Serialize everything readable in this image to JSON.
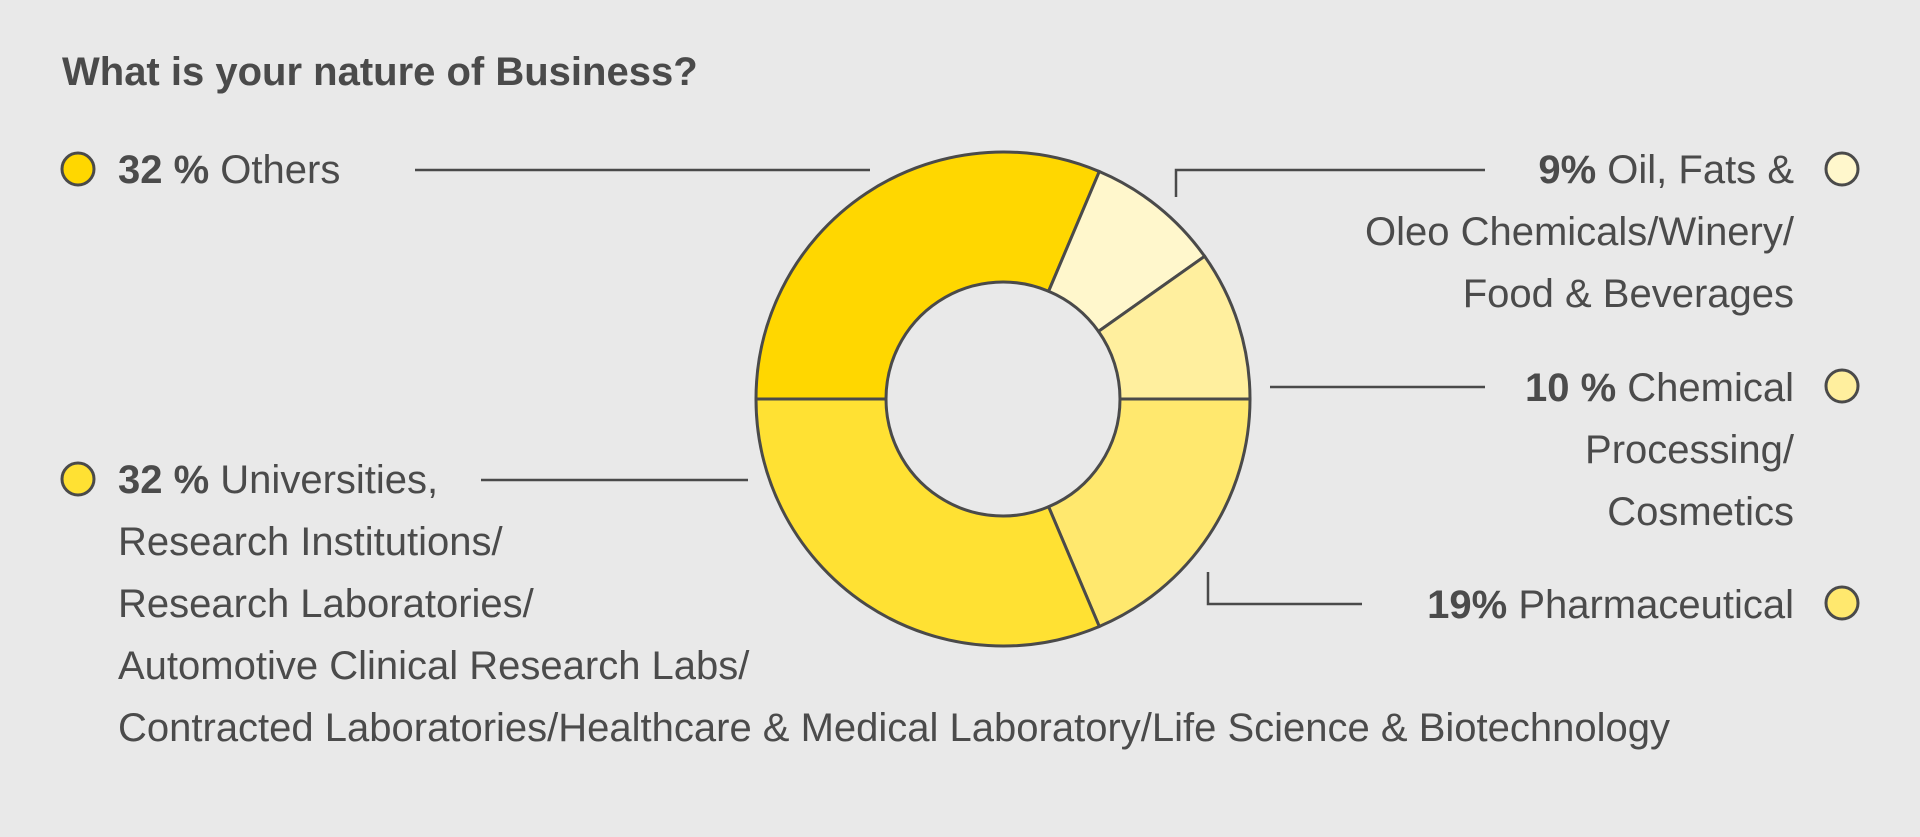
{
  "chart_data": {
    "type": "pie",
    "title": "What is your nature of Business?",
    "slices": [
      {
        "label_lines": [
          "Oil, Fats &",
          "Oleo Chemicals/Winery/",
          "Food & Beverages"
        ],
        "pct_text": "9%",
        "value": 9,
        "color": "#fff7cc"
      },
      {
        "label_lines": [
          "Chemical",
          "Processing/",
          "Cosmetics"
        ],
        "pct_text": "10 %",
        "value": 10,
        "color": "#ffef9e"
      },
      {
        "label_lines": [
          "Pharmaceutical"
        ],
        "pct_text": "19%",
        "value": 19,
        "color": "#ffe86e"
      },
      {
        "label_lines": [
          "Universities,",
          "Research Institutions/",
          "Research Laboratories/",
          "Automotive Clinical Research Labs/",
          "Contracted Laboratories/Healthcare & Medical Laboratory/Life Science & Biotechnology"
        ],
        "pct_text": "32 %",
        "value": 32,
        "color": "#ffe133"
      },
      {
        "label_lines": [
          "Others"
        ],
        "pct_text": "32 %",
        "value": 32,
        "color": "#ffd700"
      }
    ]
  }
}
